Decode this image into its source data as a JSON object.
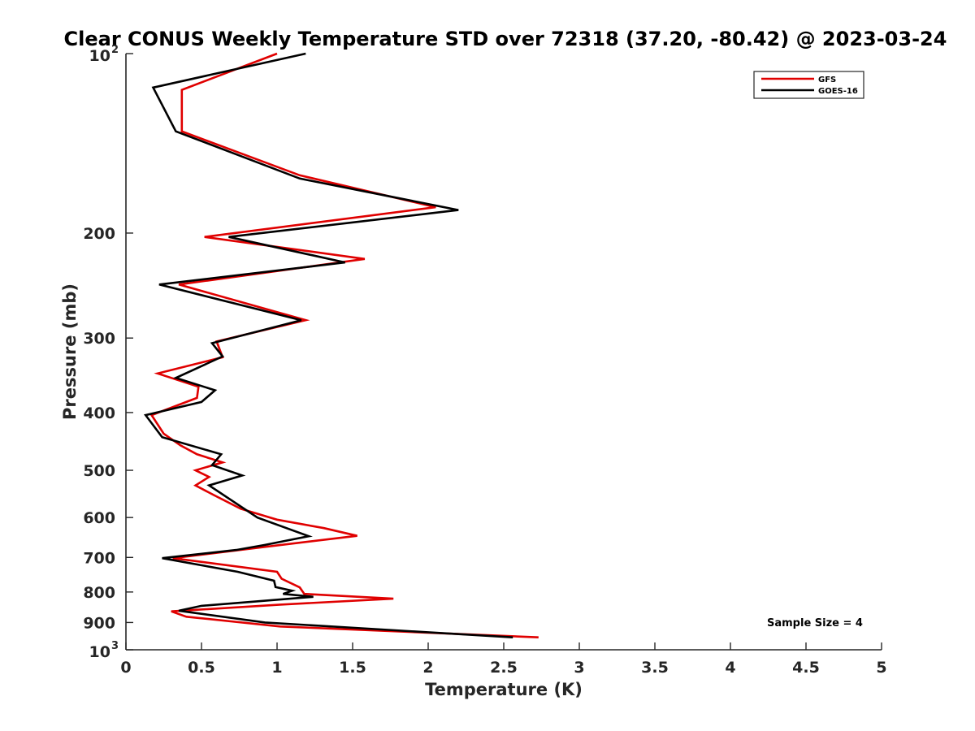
{
  "chart_data": {
    "type": "line",
    "title": "Clear CONUS Weekly Temperature STD over 72318 (37.20, -80.42) @ 2023-03-24",
    "xlabel": "Temperature (K)",
    "ylabel": "Pressure (mb)",
    "xlim": [
      0,
      5
    ],
    "ylim": [
      100,
      1000
    ],
    "y_scale": "log",
    "y_reversed": true,
    "x_ticks": [
      "0",
      "0.5",
      "1",
      "1.5",
      "2",
      "2.5",
      "3",
      "3.5",
      "4",
      "4.5",
      "5"
    ],
    "y_ticks": [
      {
        "value": 100,
        "label": "10",
        "sup": "2"
      },
      {
        "value": 200,
        "label": "200",
        "sup": ""
      },
      {
        "value": 300,
        "label": "300",
        "sup": ""
      },
      {
        "value": 400,
        "label": "400",
        "sup": ""
      },
      {
        "value": 500,
        "label": "500",
        "sup": ""
      },
      {
        "value": 600,
        "label": "600",
        "sup": ""
      },
      {
        "value": 700,
        "label": "700",
        "sup": ""
      },
      {
        "value": 800,
        "label": "800",
        "sup": ""
      },
      {
        "value": 900,
        "label": "900",
        "sup": ""
      },
      {
        "value": 1000,
        "label": "10",
        "sup": "3"
      }
    ],
    "legend_position": "top-right",
    "grid": false,
    "annotation": "Sample Size = 4",
    "series": [
      {
        "name": "GFS",
        "color": "#e00000",
        "points": [
          [
            1.0,
            100
          ],
          [
            0.37,
            115
          ],
          [
            0.37,
            135
          ],
          [
            1.15,
            160
          ],
          [
            2.05,
            181
          ],
          [
            0.52,
            203
          ],
          [
            1.58,
            221
          ],
          [
            0.35,
            244
          ],
          [
            1.19,
            280
          ],
          [
            0.6,
            304
          ],
          [
            0.64,
            323
          ],
          [
            0.21,
            344
          ],
          [
            0.48,
            362
          ],
          [
            0.47,
            378
          ],
          [
            0.17,
            404
          ],
          [
            0.25,
            434
          ],
          [
            0.36,
            454
          ],
          [
            0.47,
            470
          ],
          [
            0.64,
            485
          ],
          [
            0.46,
            500
          ],
          [
            0.55,
            513
          ],
          [
            0.46,
            530
          ],
          [
            0.58,
            550
          ],
          [
            0.76,
            580
          ],
          [
            1.0,
            605
          ],
          [
            1.31,
            625
          ],
          [
            1.53,
            644
          ],
          [
            0.92,
            672
          ],
          [
            0.31,
            702
          ],
          [
            1.0,
            740
          ],
          [
            1.03,
            760
          ],
          [
            1.15,
            786
          ],
          [
            1.18,
            806
          ],
          [
            1.77,
            821
          ],
          [
            1.02,
            840
          ],
          [
            0.3,
            862
          ],
          [
            0.4,
            880
          ],
          [
            1.02,
            914
          ],
          [
            2.73,
            953
          ]
        ]
      },
      {
        "name": "GOES-16",
        "color": "#000000",
        "points": [
          [
            1.19,
            100
          ],
          [
            0.18,
            114
          ],
          [
            0.33,
            135
          ],
          [
            1.15,
            162
          ],
          [
            2.2,
            183
          ],
          [
            0.68,
            203
          ],
          [
            1.45,
            224
          ],
          [
            0.22,
            244
          ],
          [
            1.16,
            280
          ],
          [
            0.57,
            306
          ],
          [
            0.64,
            322
          ],
          [
            0.33,
            350
          ],
          [
            0.59,
            367
          ],
          [
            0.5,
            384
          ],
          [
            0.13,
            404
          ],
          [
            0.24,
            440
          ],
          [
            0.63,
            470
          ],
          [
            0.57,
            490
          ],
          [
            0.77,
            510
          ],
          [
            0.55,
            530
          ],
          [
            0.87,
            600
          ],
          [
            1.21,
            645
          ],
          [
            0.92,
            667
          ],
          [
            0.73,
            680
          ],
          [
            0.24,
            702
          ],
          [
            0.74,
            740
          ],
          [
            0.98,
            766
          ],
          [
            0.99,
            785
          ],
          [
            1.1,
            796
          ],
          [
            1.04,
            806
          ],
          [
            1.24,
            815
          ],
          [
            0.5,
            844
          ],
          [
            0.35,
            860
          ],
          [
            0.92,
            900
          ],
          [
            2.56,
            953
          ]
        ]
      }
    ]
  }
}
